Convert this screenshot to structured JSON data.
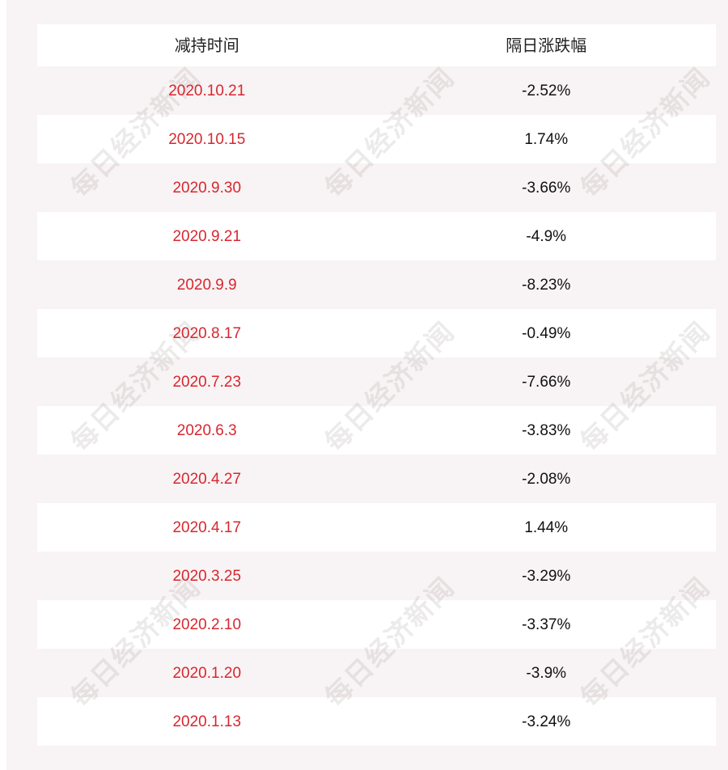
{
  "table": {
    "headers": [
      "减持时间",
      "隔日涨跌幅"
    ],
    "rows": [
      {
        "date": "2020.10.21",
        "change": "-2.52%"
      },
      {
        "date": "2020.10.15",
        "change": "1.74%"
      },
      {
        "date": "2020.9.30",
        "change": "-3.66%"
      },
      {
        "date": "2020.9.21",
        "change": "-4.9%"
      },
      {
        "date": "2020.9.9",
        "change": "-8.23%"
      },
      {
        "date": "2020.8.17",
        "change": "-0.49%"
      },
      {
        "date": "2020.7.23",
        "change": "-7.66%"
      },
      {
        "date": "2020.6.3",
        "change": "-3.83%"
      },
      {
        "date": "2020.4.27",
        "change": "-2.08%"
      },
      {
        "date": "2020.4.17",
        "change": "1.44%"
      },
      {
        "date": "2020.3.25",
        "change": "-3.29%"
      },
      {
        "date": "2020.2.10",
        "change": "-3.37%"
      },
      {
        "date": "2020.1.20",
        "change": "-3.9%"
      },
      {
        "date": "2020.1.13",
        "change": "-3.24%"
      }
    ]
  },
  "watermark": {
    "text": "每日经济新闻"
  },
  "colors": {
    "date_text": "#d7272f",
    "change_text": "#111111",
    "stripe": "#f8f3f4",
    "row": "#ffffff"
  }
}
